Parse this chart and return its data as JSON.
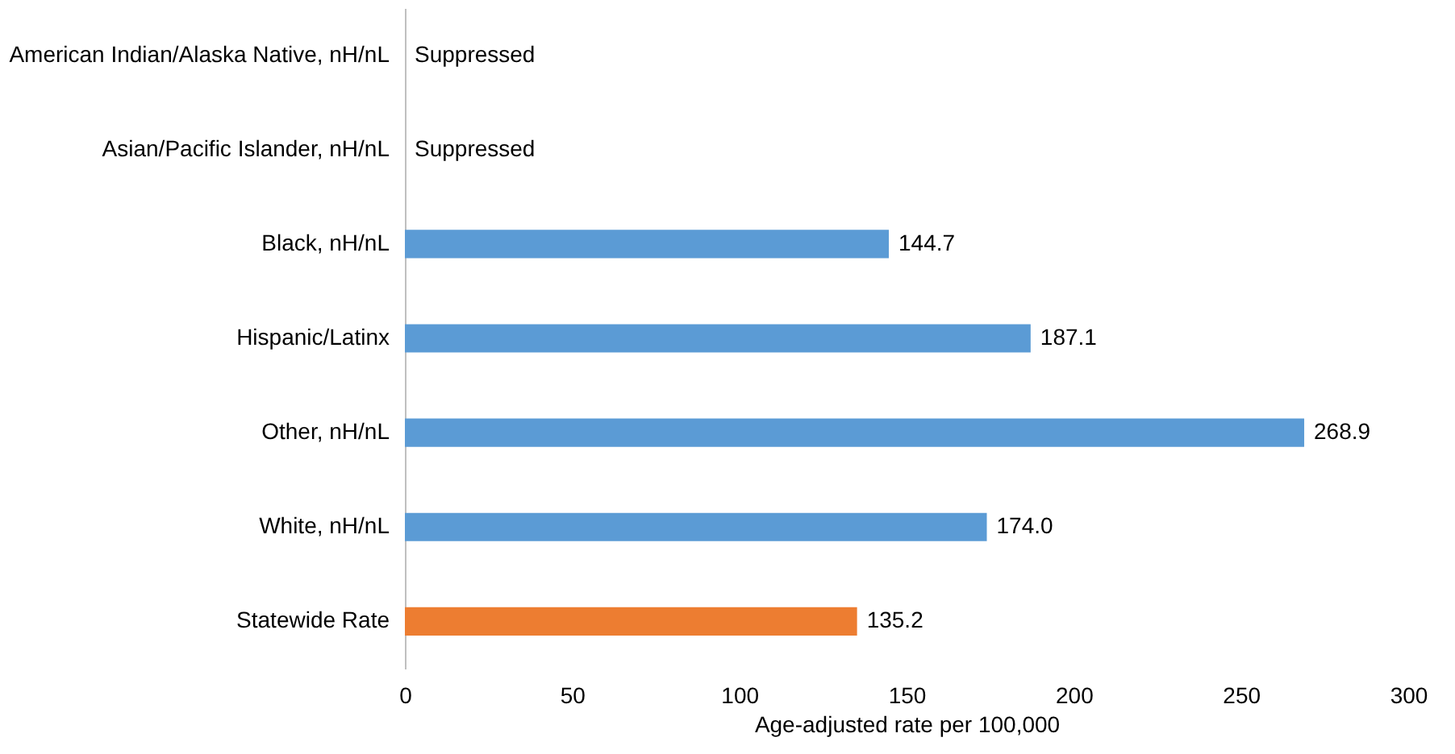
{
  "chart_data": {
    "type": "bar",
    "orientation": "horizontal",
    "categories": [
      "American Indian/Alaska Native, nH/nL",
      "Asian/Pacific Islander, nH/nL",
      "Black, nH/nL",
      "Hispanic/Latinx",
      "Other, nH/nL",
      "White, nH/nL",
      "Statewide Rate"
    ],
    "values": [
      null,
      null,
      144.7,
      187.1,
      268.9,
      174.0,
      135.2
    ],
    "value_labels": [
      "Suppressed",
      "Suppressed",
      "144.7",
      "187.1",
      "268.9",
      "174.0",
      "135.2"
    ],
    "colors": [
      "#5b9bd5",
      "#5b9bd5",
      "#5b9bd5",
      "#5b9bd5",
      "#5b9bd5",
      "#5b9bd5",
      "#ed7d31"
    ],
    "xlabel": "Age-adjusted rate per 100,000",
    "xlim": [
      0,
      300
    ],
    "xticks": [
      0,
      50,
      100,
      150,
      200,
      250,
      300
    ],
    "grid": false
  }
}
